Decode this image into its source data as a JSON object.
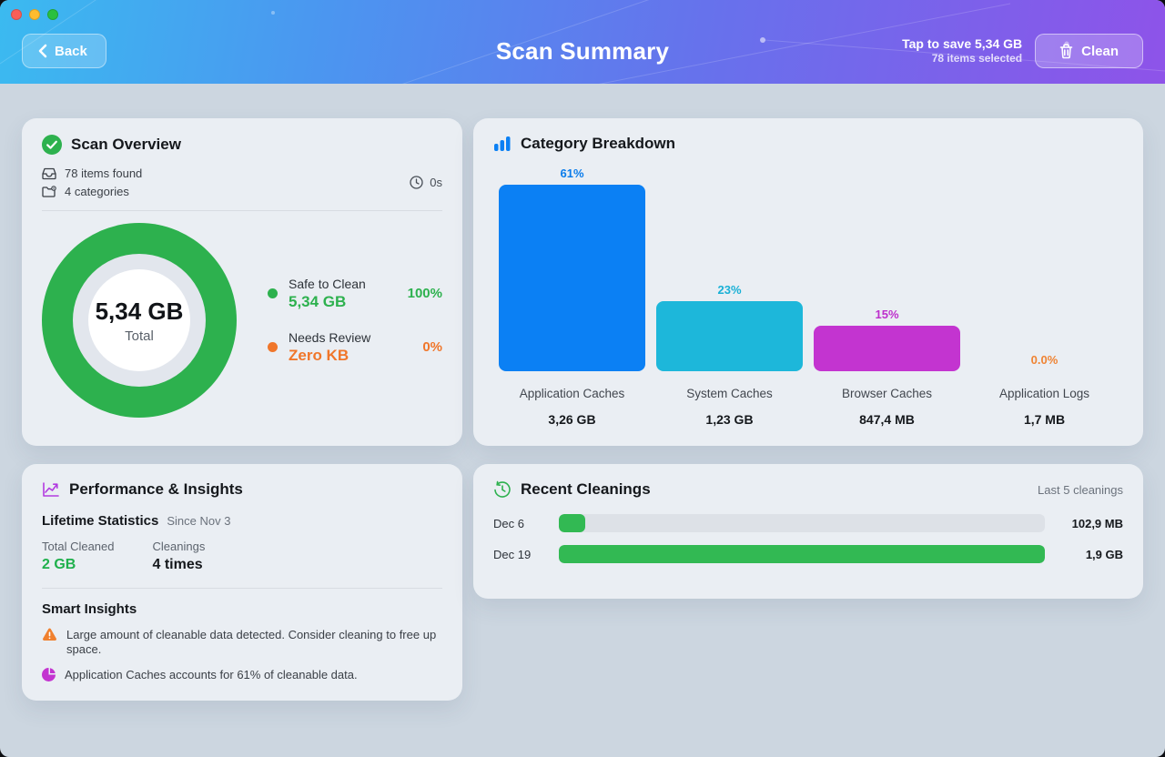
{
  "header": {
    "back_label": "Back",
    "title": "Scan Summary",
    "save_hint": "Tap to save 5,34 GB",
    "items_selected": "78 items selected",
    "clean_label": "Clean"
  },
  "scan_overview": {
    "title": "Scan Overview",
    "items_found": "78 items found",
    "categories": "4 categories",
    "duration": "0s",
    "donut": {
      "total_value": "5,34 GB",
      "total_label": "Total"
    },
    "legend": [
      {
        "label": "Safe to Clean",
        "value": "5,34 GB",
        "pct_label": "100%",
        "pct": 100,
        "color": "#2db14e"
      },
      {
        "label": "Needs Review",
        "value": "Zero KB",
        "pct_label": "0%",
        "pct": 0,
        "color": "#f0762a"
      }
    ]
  },
  "category_breakdown": {
    "title": "Category Breakdown",
    "bars": [
      {
        "name": "Application Caches",
        "size": "3,26 GB",
        "pct": 61,
        "pct_label": "61%",
        "color": "#0b80f4",
        "label_color": "#0a7ceb"
      },
      {
        "name": "System Caches",
        "size": "1,23 GB",
        "pct": 23,
        "pct_label": "23%",
        "color": "#1db7da",
        "label_color": "#18b0d6"
      },
      {
        "name": "Browser Caches",
        "size": "847,4 MB",
        "pct": 15,
        "pct_label": "15%",
        "color": "#c334d0",
        "label_color": "#bd2fcc"
      },
      {
        "name": "Application Logs",
        "size": "1,7 MB",
        "pct": 0,
        "pct_label": "0.0%",
        "color": "#f0862f",
        "label_color": "#ef8434"
      }
    ]
  },
  "performance": {
    "title": "Performance & Insights",
    "lifetime_title": "Lifetime Statistics",
    "since": "Since Nov 3",
    "stats": [
      {
        "label": "Total Cleaned",
        "value": "2 GB",
        "color": "#1fb04c"
      },
      {
        "label": "Cleanings",
        "value": "4 times",
        "color": "#15181c"
      }
    ],
    "insights_title": "Smart Insights",
    "insights": [
      {
        "icon": "warning-icon",
        "text": "Large amount of cleanable data detected. Consider cleaning to free up space."
      },
      {
        "icon": "pie-icon",
        "text": "Application Caches accounts for 61% of cleanable data."
      }
    ]
  },
  "recent_cleanings": {
    "title": "Recent Cleanings",
    "subtitle": "Last 5 cleanings",
    "rows": [
      {
        "date": "Dec 6",
        "value": "102,9 MB",
        "pct": 5.5
      },
      {
        "date": "Dec 19",
        "value": "1,9 GB",
        "pct": 100
      }
    ]
  },
  "chart_data": [
    {
      "type": "pie",
      "title": "Scan Overview donut",
      "labels": [
        "Safe to Clean",
        "Needs Review"
      ],
      "values": [
        100,
        0
      ],
      "value_labels": [
        "5,34 GB",
        "Zero KB"
      ],
      "center_text": "5,34 GB Total",
      "colors": [
        "#2db14e",
        "#f0762a"
      ]
    },
    {
      "type": "bar",
      "title": "Category Breakdown",
      "categories": [
        "Application Caches",
        "System Caches",
        "Browser Caches",
        "Application Logs"
      ],
      "values": [
        61,
        23,
        15,
        0
      ],
      "value_labels": [
        "61%",
        "23%",
        "15%",
        "0.0%"
      ],
      "sizes": [
        "3,26 GB",
        "1,23 GB",
        "847,4 MB",
        "1,7 MB"
      ],
      "colors": [
        "#0b80f4",
        "#1db7da",
        "#c334d0",
        "#f0862f"
      ],
      "ylim": [
        0,
        69
      ]
    },
    {
      "type": "bar",
      "title": "Recent Cleanings",
      "categories": [
        "Dec 6",
        "Dec 19"
      ],
      "values": [
        102.9,
        1945.6
      ],
      "value_labels": [
        "102,9 MB",
        "1,9 GB"
      ],
      "orientation": "horizontal"
    }
  ]
}
